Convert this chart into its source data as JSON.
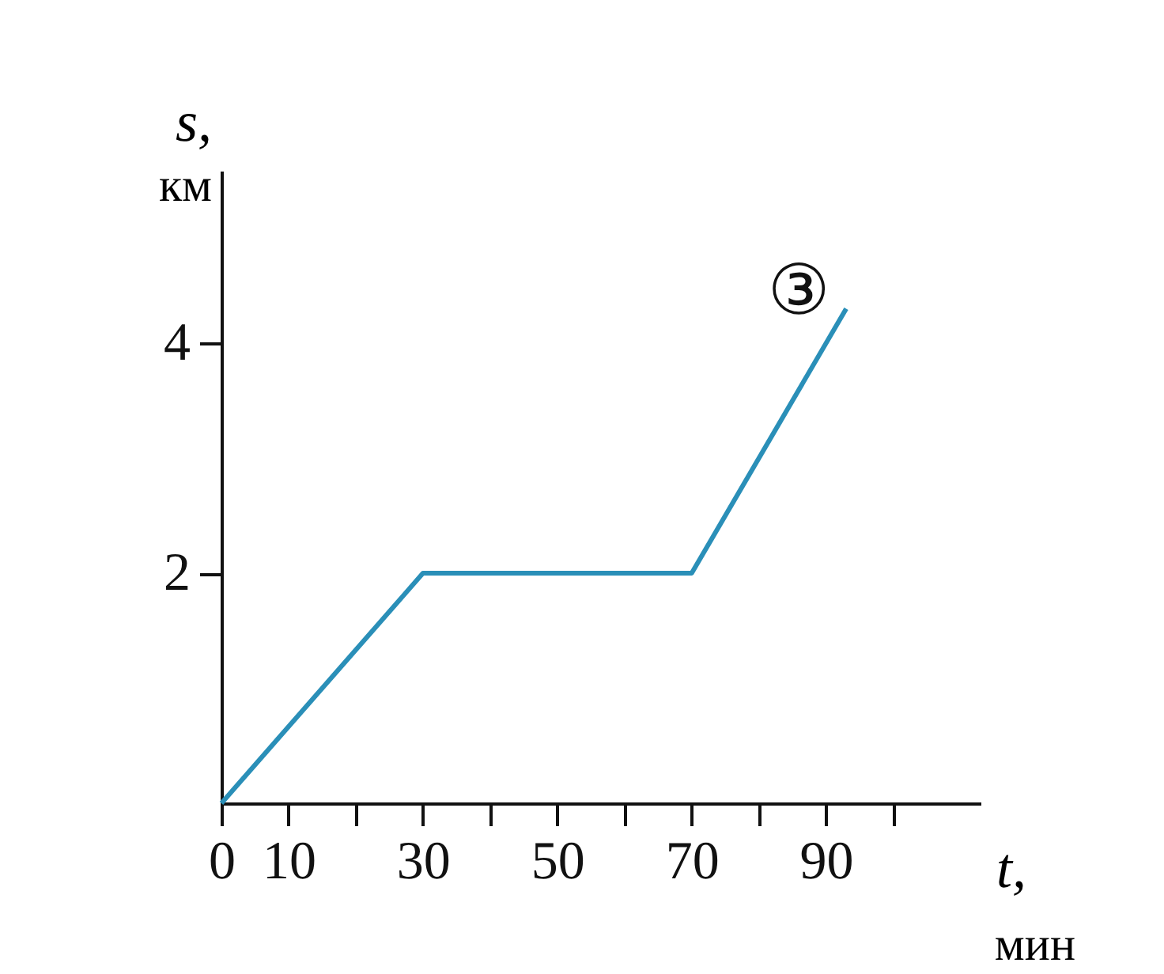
{
  "chart_data": {
    "type": "line",
    "xlabel": "t, мин",
    "ylabel": "s, км",
    "x": [
      0,
      30,
      70,
      93
    ],
    "series": [
      {
        "color": "#2a8fb8",
        "values": [
          0,
          2,
          2,
          4.3
        ]
      }
    ],
    "xlim": [
      0,
      113
    ],
    "ylim": [
      0,
      5.5
    ],
    "xticks": [
      0,
      10,
      {
        "value": 20,
        "label": null
      },
      30,
      {
        "value": 40,
        "label": null
      },
      50,
      {
        "value": 60,
        "label": null
      },
      70,
      {
        "value": 80,
        "label": null
      },
      90,
      {
        "value": 100,
        "label": null
      }
    ],
    "yticks": [
      2,
      4
    ],
    "annotations": [
      "③"
    ],
    "grid": false,
    "marker": "none",
    "line_style": "solid"
  }
}
